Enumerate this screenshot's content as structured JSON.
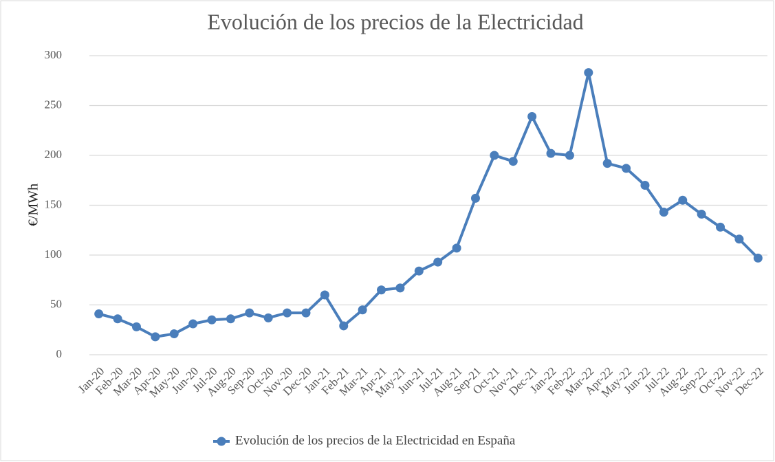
{
  "chart_data": {
    "type": "line",
    "title": "Evolución de los precios de la Electricidad",
    "y_label": "€/MWh",
    "categories": [
      "Jan-20",
      "Feb-20",
      "Mar-20",
      "Apr-20",
      "May-20",
      "Jun-20",
      "Jul-20",
      "Aug-20",
      "Sep-20",
      "Oct-20",
      "Nov-20",
      "Dec-20",
      "Jan-21",
      "Feb-21",
      "Mar-21",
      "Apr-21",
      "May-21",
      "Jun-21",
      "Jul-21",
      "Aug-21",
      "Sep-21",
      "Oct-21",
      "Nov-21",
      "Dec-21",
      "Jan-22",
      "Feb-22",
      "Mar-22",
      "Apr-22",
      "May-22",
      "Jun-22",
      "Jul-22",
      "Aug-22",
      "Sep-22",
      "Oct-22",
      "Nov-22",
      "Dec-22"
    ],
    "series": [
      {
        "name": "Evolución de los precios de la Electricidad en España",
        "color": "#4a7ebb",
        "values": [
          41,
          36,
          28,
          18,
          21,
          31,
          35,
          36,
          42,
          37,
          42,
          42,
          60,
          29,
          45,
          65,
          67,
          84,
          93,
          107,
          157,
          200,
          194,
          239,
          202,
          200,
          283,
          192,
          187,
          170,
          143,
          155,
          141,
          128,
          116,
          97
        ]
      }
    ],
    "ylim": [
      0,
      300
    ],
    "yticks": [
      0,
      50,
      100,
      150,
      200,
      250,
      300
    ],
    "grid": true,
    "legend": "bottom"
  }
}
